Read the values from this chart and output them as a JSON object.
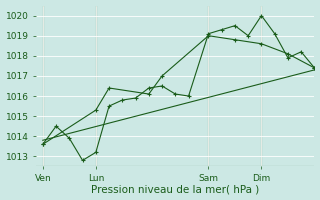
{
  "xlabel": "Pression niveau de la mer( hPa )",
  "bg_color": "#cce8e4",
  "grid_color": "#b0d8d2",
  "line_color": "#1a5c1a",
  "ylim": [
    1012.5,
    1020.5
  ],
  "yticks": [
    1013,
    1014,
    1015,
    1016,
    1017,
    1018,
    1019,
    1020
  ],
  "xtick_labels": [
    "Ven",
    "Lun",
    "Sam",
    "Dim"
  ],
  "xtick_positions": [
    0,
    16,
    50,
    66
  ],
  "vline_positions": [
    0,
    16,
    50,
    66
  ],
  "xlim": [
    -2,
    82
  ],
  "series1": [
    [
      0,
      1013.6
    ],
    [
      4,
      1014.5
    ],
    [
      8,
      1013.9
    ],
    [
      12,
      1012.8
    ],
    [
      16,
      1013.2
    ],
    [
      20,
      1015.5
    ],
    [
      24,
      1015.8
    ],
    [
      28,
      1015.9
    ],
    [
      32,
      1016.4
    ],
    [
      36,
      1016.5
    ],
    [
      40,
      1016.1
    ],
    [
      44,
      1016.0
    ],
    [
      50,
      1019.1
    ],
    [
      54,
      1019.3
    ],
    [
      58,
      1019.5
    ],
    [
      62,
      1019.0
    ],
    [
      66,
      1020.0
    ],
    [
      70,
      1019.1
    ],
    [
      74,
      1017.9
    ],
    [
      78,
      1018.2
    ],
    [
      82,
      1017.4
    ]
  ],
  "series2": [
    [
      0,
      1013.6
    ],
    [
      16,
      1015.3
    ],
    [
      20,
      1016.4
    ],
    [
      32,
      1016.1
    ],
    [
      36,
      1017.0
    ],
    [
      50,
      1019.0
    ],
    [
      58,
      1018.8
    ],
    [
      66,
      1018.6
    ],
    [
      74,
      1018.1
    ],
    [
      82,
      1017.4
    ]
  ],
  "trend_line": [
    [
      0,
      1013.8
    ],
    [
      82,
      1017.3
    ]
  ],
  "xlabel_fontsize": 7.5,
  "tick_fontsize": 6.5
}
